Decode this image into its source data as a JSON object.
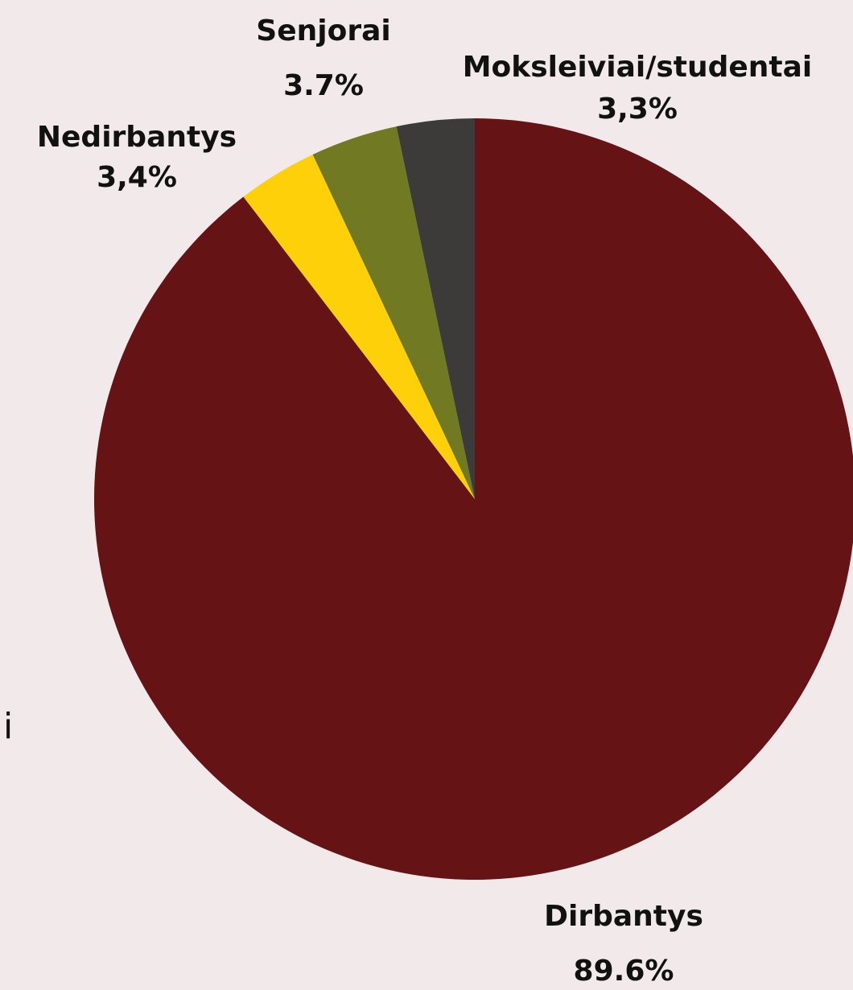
{
  "chart_data": {
    "type": "pie",
    "categories": [
      "Dirbantys",
      "Nedirbantys",
      "Senjorai",
      "Moksleiviai/studentai"
    ],
    "values": [
      89.6,
      3.4,
      3.7,
      3.3
    ],
    "value_labels": [
      "89.6%",
      "3,4%",
      "3.7%",
      "3,3%"
    ],
    "colors": [
      "#661316",
      "#fdd00a",
      "#717a22",
      "#3d3a3a"
    ],
    "annotation": "i"
  }
}
